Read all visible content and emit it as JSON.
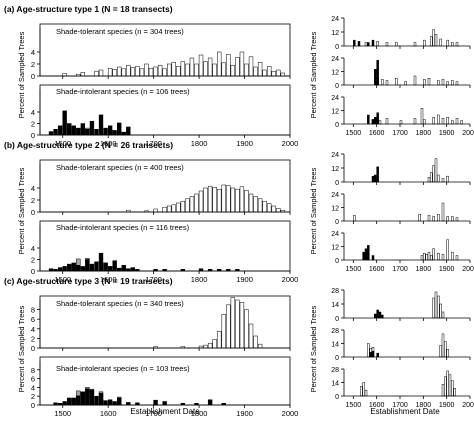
{
  "panels": [
    {
      "title": "(a) Age-structure type 1 (N = 18 transects)"
    },
    {
      "title": "(b) Age-structure type 2 (N = 26 transects)"
    },
    {
      "title": "(c) Age-structure type 3 (N = 19 transects)"
    }
  ],
  "chart_data": [
    {
      "type": "bar",
      "panel": "a",
      "position": "left",
      "ylabel": "Percent of Sampled Trees",
      "xticks": [
        1500,
        1600,
        1700,
        1800,
        1900,
        2000
      ],
      "xlim": [
        1450,
        2000
      ],
      "bin_width": 10,
      "series": [
        {
          "name": "Shade-tolerant species (n = 304 trees)",
          "fill": "white",
          "ylim": [
            0,
            8
          ],
          "yticks": [
            0,
            2,
            4
          ],
          "x": [
            1500,
            1530,
            1540,
            1570,
            1580,
            1600,
            1610,
            1620,
            1630,
            1640,
            1650,
            1660,
            1670,
            1680,
            1690,
            1700,
            1710,
            1720,
            1730,
            1740,
            1750,
            1760,
            1770,
            1780,
            1790,
            1800,
            1810,
            1820,
            1830,
            1840,
            1850,
            1860,
            1870,
            1880,
            1890,
            1900,
            1910,
            1920,
            1930,
            1940,
            1950,
            1960,
            1970,
            1980
          ],
          "values": [
            0.4,
            0.3,
            0.6,
            0.8,
            1.0,
            1.3,
            1.1,
            1.5,
            1.2,
            1.8,
            1.4,
            1.6,
            1.2,
            2.0,
            1.3,
            1.5,
            1.8,
            1.2,
            2.0,
            2.3,
            1.6,
            2.4,
            2.0,
            3.0,
            2.0,
            3.5,
            2.4,
            3.0,
            2.0,
            4.0,
            2.2,
            3.6,
            1.8,
            3.1,
            4.0,
            2.0,
            3.2,
            1.5,
            2.3,
            1.0,
            1.6,
            0.8,
            1.0,
            0.5
          ]
        },
        {
          "name": "Shade-intolerant species (n = 106 trees)",
          "fill": "black",
          "ylim": [
            0,
            8
          ],
          "yticks": [
            0,
            2,
            4
          ],
          "x": [
            1470,
            1480,
            1490,
            1500,
            1510,
            1520,
            1530,
            1540,
            1550,
            1560,
            1570,
            1580,
            1590,
            1600,
            1610,
            1620,
            1630,
            1640
          ],
          "values": [
            0.6,
            1.0,
            1.6,
            4.2,
            2.0,
            1.6,
            1.2,
            2.0,
            1.0,
            2.4,
            1.0,
            3.5,
            1.2,
            1.6,
            0.8,
            2.1,
            0.5,
            1.4
          ],
          "grey_x": [
            1550,
            1600
          ],
          "grey_values": [
            1.2,
            1.0
          ]
        }
      ]
    },
    {
      "type": "bar",
      "panel": "a",
      "position": "right",
      "ylabel": "Percent of Sampled Trees",
      "xticks": [
        1500,
        1600,
        1700,
        1800,
        1900,
        2000
      ],
      "subplots": [
        {
          "ylim": [
            0,
            24
          ],
          "yticks": [
            0,
            12,
            24
          ],
          "white": {
            "x": [
              1550,
              1600,
              1640,
              1680,
              1760,
              1800,
              1830,
              1840,
              1850,
              1870,
              1900,
              1920,
              1940
            ],
            "values": [
              3,
              4,
              3,
              3,
              3,
              5,
              8,
              14,
              10,
              6,
              5,
              3,
              3
            ]
          },
          "black": {
            "x": [
              1500,
              1520,
              1560,
              1580
            ],
            "values": [
              5,
              4,
              3,
              5
            ]
          }
        },
        {
          "ylim": [
            0,
            24
          ],
          "yticks": [
            0,
            12,
            24
          ],
          "white": {
            "x": [
              1600,
              1620,
              1640,
              1680,
              1720,
              1760,
              1800,
              1820,
              1860,
              1880,
              1900,
              1920,
              1940
            ],
            "values": [
              6,
              5,
              4,
              6,
              3,
              8,
              5,
              6,
              4,
              5,
              3,
              4,
              3
            ]
          },
          "black": {
            "x": [
              1590,
              1600
            ],
            "values": [
              14,
              22
            ]
          }
        },
        {
          "ylim": [
            0,
            24
          ],
          "yticks": [
            0,
            12,
            24
          ],
          "white": {
            "x": [
              1580,
              1610,
              1640,
              1700,
              1760,
              1790,
              1800,
              1840,
              1860,
              1880,
              1900,
              1920,
              1940,
              1960
            ],
            "values": [
              4,
              3,
              5,
              3,
              5,
              14,
              4,
              6,
              8,
              5,
              6,
              3,
              5,
              3
            ]
          },
          "black": {
            "x": [
              1560,
              1580,
              1590,
              1600
            ],
            "values": [
              8,
              4,
              6,
              10
            ]
          }
        }
      ]
    },
    {
      "type": "bar",
      "panel": "b",
      "position": "left",
      "ylabel": "Percent of Sampled Trees",
      "xticks": [
        1500,
        1600,
        1700,
        1800,
        1900,
        2000
      ],
      "xlim": [
        1450,
        2000
      ],
      "bin_width": 10,
      "series": [
        {
          "name": "Shade-tolerant species (n = 400 trees)",
          "fill": "white",
          "ylim": [
            0,
            8
          ],
          "yticks": [
            0,
            2,
            4
          ],
          "x": [
            1640,
            1680,
            1700,
            1720,
            1730,
            1740,
            1750,
            1760,
            1770,
            1780,
            1790,
            1800,
            1810,
            1820,
            1830,
            1840,
            1850,
            1860,
            1870,
            1880,
            1890,
            1900,
            1910,
            1920,
            1930,
            1940,
            1950,
            1960,
            1970,
            1980
          ],
          "values": [
            0.3,
            0.2,
            0.5,
            0.8,
            1.0,
            1.2,
            1.5,
            1.8,
            2.2,
            2.6,
            3.0,
            3.5,
            4.0,
            4.3,
            4.1,
            3.8,
            4.5,
            4.4,
            4.0,
            3.8,
            4.2,
            3.6,
            3.0,
            2.6,
            2.2,
            1.8,
            1.4,
            1.0,
            0.6,
            0.3
          ]
        },
        {
          "name": "Shade-intolerant species (n = 116 trees)",
          "fill": "black",
          "ylim": [
            0,
            8
          ],
          "yticks": [
            0,
            2,
            4
          ],
          "x": [
            1470,
            1480,
            1490,
            1500,
            1510,
            1520,
            1530,
            1540,
            1550,
            1560,
            1570,
            1580,
            1590,
            1600,
            1610,
            1620,
            1630,
            1640,
            1650,
            1660,
            1700,
            1720,
            1760,
            1800,
            1820,
            1840,
            1860,
            1880
          ],
          "values": [
            0.4,
            0.3,
            0.6,
            0.8,
            1.2,
            1.4,
            1.0,
            0.8,
            2.0,
            1.2,
            1.6,
            3.1,
            1.4,
            0.8,
            1.8,
            0.5,
            1.0,
            0.4,
            0.6,
            0.3,
            0.3,
            0.3,
            0.3,
            0.4,
            0.3,
            0.3,
            0.3,
            0.3
          ],
          "grey_x": [
            1530,
            1550,
            1590
          ],
          "grey_values": [
            2.1,
            2.2,
            1.4
          ]
        }
      ]
    },
    {
      "type": "bar",
      "panel": "b",
      "position": "right",
      "ylabel": "Percent of Sampled Trees",
      "xticks": [
        1500,
        1600,
        1700,
        1800,
        1900,
        2000
      ],
      "subplots": [
        {
          "ylim": [
            0,
            24
          ],
          "yticks": [
            0,
            12,
            24
          ],
          "white": {
            "x": [
              1820,
              1830,
              1840,
              1850,
              1860,
              1880,
              1900
            ],
            "values": [
              4,
              8,
              14,
              20,
              6,
              3,
              5
            ]
          },
          "black": {
            "x": [
              1580,
              1590,
              1600
            ],
            "values": [
              5,
              6,
              13
            ]
          }
        },
        {
          "ylim": [
            0,
            24
          ],
          "yticks": [
            0,
            12,
            24
          ],
          "white": {
            "x": [
              1500,
              1780,
              1820,
              1840,
              1860,
              1880,
              1900,
              1920,
              1940
            ],
            "values": [
              5,
              6,
              5,
              4,
              6,
              16,
              4,
              4,
              3
            ]
          },
          "black": {
            "x": [],
            "values": []
          }
        },
        {
          "ylim": [
            0,
            24
          ],
          "yticks": [
            0,
            12,
            24
          ],
          "white": {
            "x": [
              1790,
              1800,
              1810,
              1820,
              1830,
              1840,
              1860,
              1880,
              1900,
              1920,
              1940
            ],
            "values": [
              4,
              6,
              5,
              7,
              4,
              10,
              6,
              5,
              18,
              7,
              4
            ]
          },
          "black": {
            "x": [
              1540,
              1550,
              1560,
              1580
            ],
            "values": [
              7,
              10,
              13,
              4
            ]
          }
        }
      ]
    },
    {
      "type": "bar",
      "panel": "c",
      "position": "left",
      "ylabel": "Percent of Sampled Trees",
      "xticks": [
        1500,
        1600,
        1700,
        1800,
        1900,
        2000
      ],
      "xlim": [
        1450,
        2000
      ],
      "bin_width": 10,
      "series": [
        {
          "name": "Shade-tolerant species (n = 340 trees)",
          "fill": "white",
          "ylim": [
            0,
            10
          ],
          "yticks": [
            0,
            2,
            4,
            6,
            8
          ],
          "x": [
            1700,
            1760,
            1800,
            1810,
            1820,
            1830,
            1840,
            1850,
            1860,
            1870,
            1880,
            1890,
            1900,
            1910,
            1920,
            1930
          ],
          "values": [
            0.3,
            0.3,
            0.4,
            0.6,
            1.0,
            1.8,
            3.5,
            7.0,
            9.0,
            10.5,
            10.0,
            9.5,
            8.0,
            5.0,
            2.5,
            0.8
          ]
        },
        {
          "name": "Shade-intolerant species (n = 103 trees)",
          "fill": "black",
          "ylim": [
            0,
            10
          ],
          "yticks": [
            0,
            2,
            4,
            6,
            8
          ],
          "x": [
            1480,
            1490,
            1500,
            1510,
            1520,
            1530,
            1540,
            1550,
            1560,
            1570,
            1580,
            1590,
            1600,
            1610,
            1620,
            1640,
            1660,
            1700,
            1720,
            1760,
            1790,
            1820,
            1850
          ],
          "values": [
            0.5,
            0.4,
            0.8,
            1.6,
            1.6,
            2.1,
            3.0,
            3.7,
            3.4,
            2.0,
            2.7,
            1.0,
            1.2,
            0.8,
            1.6,
            0.6,
            0.5,
            1.1,
            0.8,
            0.4,
            0.4,
            1.2,
            0.4
          ],
          "grey_x": [
            1530,
            1550,
            1560,
            1580,
            1620
          ],
          "grey_values": [
            3.2,
            4.0,
            3.6,
            3.0,
            1.8
          ]
        }
      ]
    },
    {
      "type": "bar",
      "panel": "c",
      "position": "right",
      "ylabel": "Percent of Sampled Trees",
      "xticks": [
        1500,
        1600,
        1700,
        1800,
        1900,
        2000
      ],
      "subplots": [
        {
          "ylim": [
            0,
            28
          ],
          "yticks": [
            0,
            14,
            28
          ],
          "white": {
            "x": [
              1840,
              1850,
              1860,
              1870,
              1880
            ],
            "values": [
              20,
              26,
              22,
              14,
              6
            ]
          },
          "black": {
            "x": [
              1590,
              1600,
              1610,
              1620
            ],
            "values": [
              4,
              8,
              6,
              3
            ]
          }
        },
        {
          "ylim": [
            0,
            28
          ],
          "yticks": [
            0,
            14,
            28
          ],
          "white": {
            "x": [
              1560,
              1570,
              1580,
              1870,
              1880,
              1890,
              1900
            ],
            "values": [
              14,
              9,
              10,
              12,
              24,
              16,
              8
            ]
          },
          "black": {
            "x": [
              1570,
              1580,
              1600
            ],
            "values": [
              5,
              6,
              4
            ]
          }
        },
        {
          "ylim": [
            0,
            28
          ],
          "yticks": [
            0,
            14,
            28
          ],
          "white": {
            "x": [
              1530,
              1540,
              1550,
              1880,
              1890,
              1900,
              1910,
              1920,
              1930
            ],
            "values": [
              10,
              14,
              6,
              12,
              20,
              26,
              22,
              16,
              8
            ]
          },
          "black": {
            "x": [],
            "values": []
          }
        }
      ]
    }
  ],
  "xlabel": "Establishment Date",
  "colors": {
    "bar_white": "#ffffff",
    "bar_black": "#000000",
    "bar_grey": "#a6a6a6",
    "stroke": "#000000"
  }
}
